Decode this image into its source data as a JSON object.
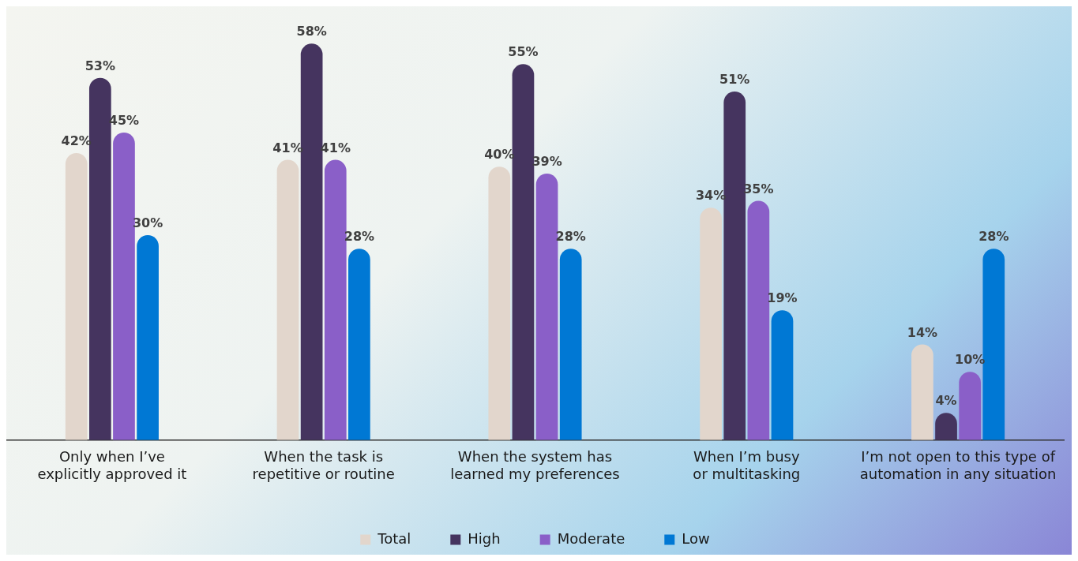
{
  "chart_data": {
    "type": "bar",
    "categories": [
      "Only when I’ve explicitly approved it",
      "When the task is repetitive or routine",
      "When the system has learned my preferences",
      "When I’m busy or multitasking",
      "I’m not open to this type of automation in any situation"
    ],
    "series": [
      {
        "name": "Total",
        "color": "#e2d6cc",
        "values": [
          42,
          41,
          40,
          34,
          14
        ],
        "value_labels": [
          "42%",
          "41%",
          "40%",
          "34%",
          "14%"
        ]
      },
      {
        "name": "High",
        "color": "#45345f",
        "values": [
          53,
          58,
          55,
          51,
          4
        ],
        "value_labels": [
          "53%",
          "58%",
          "55%",
          "51%",
          "4%"
        ]
      },
      {
        "name": "Moderate",
        "color": "#8a5fc8",
        "values": [
          45,
          41,
          39,
          35,
          10
        ],
        "value_labels": [
          "45%",
          "41%",
          "39%",
          "35%",
          "10%"
        ]
      },
      {
        "name": "Low",
        "color": "#0078d4",
        "values": [
          30,
          28,
          28,
          19,
          28
        ],
        "value_labels": [
          "30%",
          "28%",
          "28%",
          "19%",
          "28%"
        ]
      }
    ],
    "legend": "bottom",
    "grid": false,
    "tick_labels": "x"
  }
}
